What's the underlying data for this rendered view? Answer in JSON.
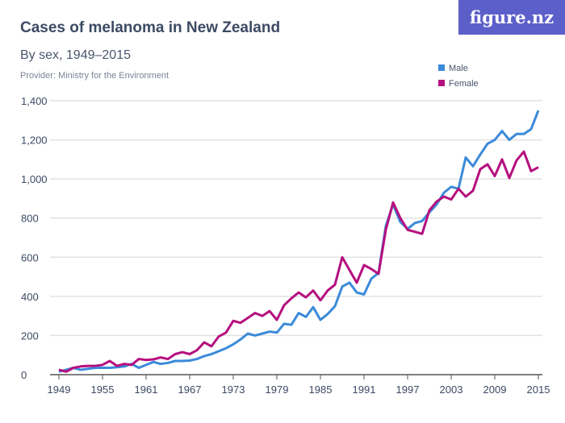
{
  "logo": "figure.nz",
  "chart_data": {
    "type": "line",
    "title": "Cases of melanoma in New Zealand",
    "subtitle": "By sex, 1949–2015",
    "provider": "Provider: Ministry for the Environment",
    "xlabel": "",
    "ylabel": "",
    "xlim": [
      1949,
      2015
    ],
    "ylim": [
      0,
      1400
    ],
    "yticks": [
      0,
      200,
      400,
      600,
      800,
      1000,
      1200,
      1400
    ],
    "ytick_labels": [
      "0",
      "200",
      "400",
      "600",
      "800",
      "1,000",
      "1,200",
      "1,400"
    ],
    "xticks": [
      1949,
      1955,
      1961,
      1967,
      1973,
      1979,
      1985,
      1991,
      1997,
      2003,
      2009,
      2015
    ],
    "grid": true,
    "legend_position": "top-right",
    "x_start": 1949,
    "series": [
      {
        "name": "Male",
        "color": "#3b8ad9",
        "values": [
          15,
          25,
          35,
          25,
          30,
          35,
          35,
          35,
          38,
          42,
          55,
          35,
          50,
          65,
          55,
          60,
          70,
          70,
          72,
          80,
          95,
          105,
          120,
          135,
          155,
          180,
          210,
          200,
          210,
          220,
          215,
          260,
          255,
          315,
          295,
          345,
          280,
          310,
          350,
          450,
          470,
          420,
          410,
          490,
          520,
          760,
          870,
          780,
          745,
          775,
          785,
          830,
          870,
          930,
          960,
          950,
          1110,
          1065,
          1125,
          1180,
          1200,
          1245,
          1200,
          1230,
          1230,
          1255,
          1350
        ]
      },
      {
        "name": "Female",
        "color": "#b5107f",
        "values": [
          25,
          15,
          35,
          42,
          45,
          45,
          50,
          70,
          45,
          55,
          50,
          80,
          75,
          78,
          88,
          80,
          105,
          115,
          105,
          125,
          165,
          145,
          195,
          215,
          275,
          265,
          290,
          315,
          300,
          325,
          280,
          355,
          390,
          420,
          395,
          430,
          380,
          430,
          460,
          600,
          535,
          470,
          560,
          540,
          515,
          740,
          880,
          800,
          740,
          730,
          720,
          840,
          885,
          910,
          895,
          950,
          910,
          940,
          1050,
          1075,
          1015,
          1100,
          1005,
          1095,
          1140,
          1040,
          1060
        ]
      }
    ]
  }
}
